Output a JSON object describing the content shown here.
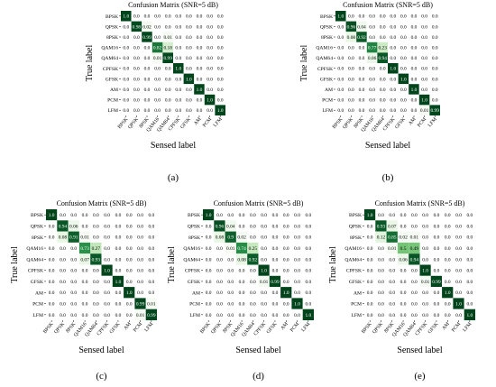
{
  "chart_data": [
    {
      "type": "heatmap",
      "title": "Confusion Matrix (SNR=5 dB)",
      "panel_label": "(a)",
      "xlabel": "Sensed label",
      "ylabel": "True label",
      "labels": [
        "BPSK",
        "QPSK",
        "8PSK",
        "QAM16",
        "QAM64",
        "CPFSK",
        "GFSK",
        "AM",
        "PCM",
        "LFM"
      ],
      "values": [
        [
          "1.0",
          "0.0",
          "0.0",
          "0.0",
          "0.0",
          "0.0",
          "0.0",
          "0.0",
          "0.0",
          "0.0"
        ],
        [
          "0.0",
          "0.98",
          "0.02",
          "0.0",
          "0.0",
          "0.0",
          "0.0",
          "0.0",
          "0.0",
          "0.0"
        ],
        [
          "0.0",
          "0.0",
          "0.99",
          "0.0",
          "0.01",
          "0.0",
          "0.0",
          "0.0",
          "0.0",
          "0.0"
        ],
        [
          "0.0",
          "0.0",
          "0.0",
          "0.82",
          "0.18",
          "0.0",
          "0.0",
          "0.0",
          "0.0",
          "0.0"
        ],
        [
          "0.0",
          "0.0",
          "0.0",
          "0.01",
          "0.99",
          "0.0",
          "0.0",
          "0.0",
          "0.0",
          "0.0"
        ],
        [
          "0.0",
          "0.0",
          "0.0",
          "0.0",
          "0.0",
          "1.0",
          "0.0",
          "0.0",
          "0.0",
          "0.0"
        ],
        [
          "0.0",
          "0.0",
          "0.0",
          "0.0",
          "0.0",
          "0.0",
          "1.0",
          "0.0",
          "0.0",
          "0.0"
        ],
        [
          "0.0",
          "0.0",
          "0.0",
          "0.0",
          "0.0",
          "0.0",
          "0.0",
          "1.0",
          "0.0",
          "0.0"
        ],
        [
          "0.0",
          "0.0",
          "0.0",
          "0.0",
          "0.0",
          "0.0",
          "0.0",
          "0.0",
          "1.0",
          "0.0"
        ],
        [
          "0.0",
          "0.0",
          "0.0",
          "0.0",
          "0.0",
          "0.0",
          "0.0",
          "0.0",
          "0.0",
          "1.0"
        ]
      ]
    },
    {
      "type": "heatmap",
      "title": "Confusion Matrix (SNR=5 dB)",
      "panel_label": "(b)",
      "xlabel": "Sensed label",
      "ylabel": "True label",
      "labels": [
        "BPSK",
        "QPSK",
        "8PSK",
        "QAM16",
        "QAM64",
        "CPFSK",
        "GFSK",
        "AM",
        "PCM",
        "LFM"
      ],
      "values": [
        [
          "1.0",
          "0.0",
          "0.0",
          "0.0",
          "0.0",
          "0.0",
          "0.0",
          "0.0",
          "0.0",
          "0.0"
        ],
        [
          "0.0",
          "0.96",
          "0.04",
          "0.0",
          "0.0",
          "0.0",
          "0.0",
          "0.0",
          "0.0",
          "0.0"
        ],
        [
          "0.0",
          "0.08",
          "0.92",
          "0.0",
          "0.0",
          "0.0",
          "0.0",
          "0.0",
          "0.0",
          "0.0"
        ],
        [
          "0.0",
          "0.0",
          "0.0",
          "0.77",
          "0.23",
          "0.0",
          "0.0",
          "0.0",
          "0.0",
          "0.0"
        ],
        [
          "0.0",
          "0.0",
          "0.0",
          "0.06",
          "0.94",
          "0.0",
          "0.0",
          "0.0",
          "0.0",
          "0.0"
        ],
        [
          "0.0",
          "0.0",
          "0.0",
          "0.0",
          "0.0",
          "1.0",
          "0.0",
          "0.0",
          "0.0",
          "0.0"
        ],
        [
          "0.0",
          "0.0",
          "0.0",
          "0.0",
          "0.0",
          "0.0",
          "1.0",
          "0.0",
          "0.0",
          "0.0"
        ],
        [
          "0.0",
          "0.0",
          "0.0",
          "0.0",
          "0.0",
          "0.0",
          "0.0",
          "1.0",
          "0.0",
          "0.0"
        ],
        [
          "0.0",
          "0.0",
          "0.0",
          "0.0",
          "0.0",
          "0.0",
          "0.0",
          "0.0",
          "1.0",
          "0.0"
        ],
        [
          "0.0",
          "0.0",
          "0.0",
          "0.0",
          "0.0",
          "0.0",
          "0.0",
          "0.0",
          "0.01",
          "0.99"
        ]
      ]
    },
    {
      "type": "heatmap",
      "title": "Confusion Matrix (SNR=5 dB)",
      "panel_label": "(c)",
      "xlabel": "Sensed label",
      "ylabel": "True label",
      "labels": [
        "BPSK",
        "QPSK",
        "8PSK",
        "QAM16",
        "QAM64",
        "CPFSK",
        "GFSK",
        "AM",
        "PCM",
        "LFM"
      ],
      "values": [
        [
          "1.0",
          "0.0",
          "0.0",
          "0.0",
          "0.0",
          "0.0",
          "0.0",
          "0.0",
          "0.0",
          "0.0"
        ],
        [
          "0.0",
          "0.94",
          "0.06",
          "0.0",
          "0.0",
          "0.0",
          "0.0",
          "0.0",
          "0.0",
          "0.0"
        ],
        [
          "0.0",
          "0.08",
          "0.91",
          "0.01",
          "0.0",
          "0.0",
          "0.0",
          "0.0",
          "0.0",
          "0.0"
        ],
        [
          "0.0",
          "0.0",
          "0.0",
          "0.73",
          "0.27",
          "0.0",
          "0.0",
          "0.0",
          "0.0",
          "0.0"
        ],
        [
          "0.0",
          "0.0",
          "0.0",
          "0.07",
          "0.93",
          "0.0",
          "0.0",
          "0.0",
          "0.0",
          "0.0"
        ],
        [
          "0.0",
          "0.0",
          "0.0",
          "0.0",
          "0.0",
          "1.0",
          "0.0",
          "0.0",
          "0.0",
          "0.0"
        ],
        [
          "0.0",
          "0.0",
          "0.0",
          "0.0",
          "0.0",
          "0.0",
          "1.0",
          "0.0",
          "0.0",
          "0.0"
        ],
        [
          "0.0",
          "0.0",
          "0.0",
          "0.0",
          "0.0",
          "0.0",
          "0.0",
          "1.0",
          "0.0",
          "0.0"
        ],
        [
          "0.0",
          "0.0",
          "0.0",
          "0.0",
          "0.0",
          "0.0",
          "0.0",
          "0.0",
          "0.99",
          "0.01"
        ],
        [
          "0.0",
          "0.0",
          "0.0",
          "0.0",
          "0.0",
          "0.0",
          "0.0",
          "0.0",
          "0.01",
          "0.99"
        ]
      ]
    },
    {
      "type": "heatmap",
      "title": "Confusion Matrix (SNR=5 dB)",
      "panel_label": "(d)",
      "xlabel": "Sensed label",
      "ylabel": "True label",
      "labels": [
        "BPSK",
        "QPSK",
        "8PSK",
        "QAM16",
        "QAM64",
        "CPFSK",
        "GFSK",
        "AM",
        "PCM",
        "LFM"
      ],
      "values": [
        [
          "1.0",
          "0.0",
          "0.0",
          "0.0",
          "0.0",
          "0.0",
          "0.0",
          "0.0",
          "0.0",
          "0.0"
        ],
        [
          "0.0",
          "0.96",
          "0.04",
          "0.0",
          "0.0",
          "0.0",
          "0.0",
          "0.0",
          "0.0",
          "0.0"
        ],
        [
          "0.0",
          "0.08",
          "0.9",
          "0.02",
          "0.0",
          "0.0",
          "0.0",
          "0.0",
          "0.0",
          "0.0"
        ],
        [
          "0.0",
          "0.0",
          "0.01",
          "0.74",
          "0.25",
          "0.0",
          "0.0",
          "0.0",
          "0.0",
          "0.0"
        ],
        [
          "0.0",
          "0.0",
          "0.0",
          "0.08",
          "0.92",
          "0.0",
          "0.0",
          "0.0",
          "0.0",
          "0.0"
        ],
        [
          "0.0",
          "0.0",
          "0.0",
          "0.0",
          "0.0",
          "1.0",
          "0.0",
          "0.0",
          "0.0",
          "0.0"
        ],
        [
          "0.0",
          "0.0",
          "0.0",
          "0.0",
          "0.0",
          "0.01",
          "0.99",
          "0.0",
          "0.0",
          "0.0"
        ],
        [
          "0.0",
          "0.0",
          "0.0",
          "0.0",
          "0.0",
          "0.0",
          "0.0",
          "1.0",
          "0.0",
          "0.0"
        ],
        [
          "0.0",
          "0.0",
          "0.0",
          "0.0",
          "0.0",
          "0.0",
          "0.0",
          "0.0",
          "1.0",
          "0.0"
        ],
        [
          "0.0",
          "0.0",
          "0.0",
          "0.0",
          "0.0",
          "0.0",
          "0.0",
          "0.0",
          "0.0",
          "1.0"
        ]
      ]
    },
    {
      "type": "heatmap",
      "title": "Confusion Matrix (SNR=5 dB)",
      "panel_label": "(e)",
      "xlabel": "Sensed label",
      "ylabel": "True label",
      "labels": [
        "BPSK",
        "QPSK",
        "8PSK",
        "QAM16",
        "QAM64",
        "CPFSK",
        "GFSK",
        "AM",
        "PCM",
        "LFM"
      ],
      "values": [
        [
          "1.0",
          "0.0",
          "0.0",
          "0.0",
          "0.0",
          "0.0",
          "0.0",
          "0.0",
          "0.0",
          "0.0"
        ],
        [
          "0.0",
          "0.93",
          "0.07",
          "0.0",
          "0.0",
          "0.0",
          "0.0",
          "0.0",
          "0.0",
          "0.0"
        ],
        [
          "0.0",
          "0.12",
          "0.85",
          "0.02",
          "0.01",
          "0.0",
          "0.0",
          "0.0",
          "0.0",
          "0.0"
        ],
        [
          "0.0",
          "0.0",
          "0.01",
          "0.5",
          "0.49",
          "0.0",
          "0.0",
          "0.0",
          "0.0",
          "0.0"
        ],
        [
          "0.0",
          "0.0",
          "0.0",
          "0.06",
          "0.94",
          "0.0",
          "0.0",
          "0.0",
          "0.0",
          "0.0"
        ],
        [
          "0.0",
          "0.0",
          "0.0",
          "0.0",
          "0.0",
          "1.0",
          "0.0",
          "0.0",
          "0.0",
          "0.0"
        ],
        [
          "0.0",
          "0.0",
          "0.0",
          "0.0",
          "0.0",
          "0.01",
          "0.99",
          "0.0",
          "0.0",
          "0.0"
        ],
        [
          "0.0",
          "0.0",
          "0.0",
          "0.0",
          "0.0",
          "0.0",
          "0.0",
          "1.0",
          "0.0",
          "0.0"
        ],
        [
          "0.0",
          "0.0",
          "0.0",
          "0.0",
          "0.0",
          "0.0",
          "0.0",
          "0.0",
          "1.0",
          "0.0"
        ],
        [
          "0.0",
          "0.0",
          "0.0",
          "0.0",
          "0.0",
          "0.0",
          "0.0",
          "0.0",
          "0.0",
          "1.0"
        ]
      ]
    }
  ],
  "colors": {
    "max": "#00441b",
    "min": "#f7fcf5",
    "text_dark": "#000000",
    "text_light": "#ffffff"
  }
}
